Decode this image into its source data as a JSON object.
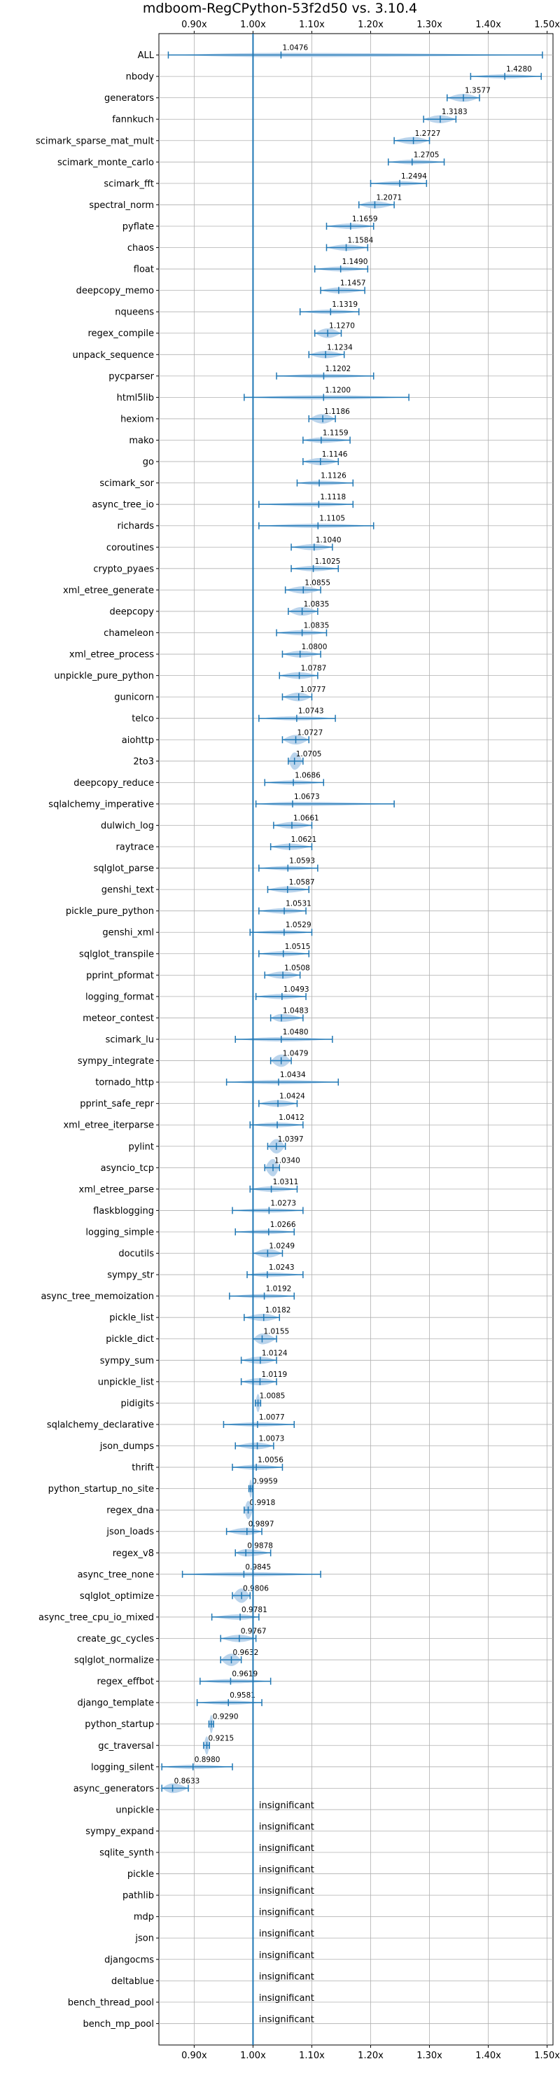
{
  "chart_data": {
    "type": "violin",
    "title": "mdboom-RegCPython-53f2d50 vs. 3.10.4",
    "xlim": [
      0.84,
      1.51
    ],
    "x_ticks": [
      0.9,
      1.0,
      1.1,
      1.2,
      1.3,
      1.4,
      1.5
    ],
    "x_tick_labels": [
      "0.90x",
      "1.00x",
      "1.10x",
      "1.20x",
      "1.30x",
      "1.40x",
      "1.50x"
    ],
    "reference_line": 1.0,
    "grid": true,
    "insignificant_text": "insignificant",
    "benchmarks": [
      {
        "name": "ALL",
        "label": "1.0476",
        "value": 1.0476,
        "min": 0.856,
        "max": 1.492
      },
      {
        "name": "nbody",
        "label": "1.4280",
        "value": 1.428,
        "min": 1.37,
        "max": 1.49
      },
      {
        "name": "generators",
        "label": "1.3577",
        "value": 1.3577,
        "min": 1.33,
        "max": 1.385
      },
      {
        "name": "fannkuch",
        "label": "1.3183",
        "value": 1.3183,
        "min": 1.29,
        "max": 1.345
      },
      {
        "name": "scimark_sparse_mat_mult",
        "label": "1.2727",
        "value": 1.2727,
        "min": 1.24,
        "max": 1.3
      },
      {
        "name": "scimark_monte_carlo",
        "label": "1.2705",
        "value": 1.2705,
        "min": 1.23,
        "max": 1.325
      },
      {
        "name": "scimark_fft",
        "label": "1.2494",
        "value": 1.2494,
        "min": 1.2,
        "max": 1.295
      },
      {
        "name": "spectral_norm",
        "label": "1.2071",
        "value": 1.2071,
        "min": 1.18,
        "max": 1.24
      },
      {
        "name": "pyflate",
        "label": "1.1659",
        "value": 1.1659,
        "min": 1.125,
        "max": 1.205
      },
      {
        "name": "chaos",
        "label": "1.1584",
        "value": 1.1584,
        "min": 1.125,
        "max": 1.195
      },
      {
        "name": "float",
        "label": "1.1490",
        "value": 1.149,
        "min": 1.105,
        "max": 1.195
      },
      {
        "name": "deepcopy_memo",
        "label": "1.1457",
        "value": 1.1457,
        "min": 1.115,
        "max": 1.19
      },
      {
        "name": "nqueens",
        "label": "1.1319",
        "value": 1.1319,
        "min": 1.08,
        "max": 1.18
      },
      {
        "name": "regex_compile",
        "label": "1.1270",
        "value": 1.127,
        "min": 1.105,
        "max": 1.15
      },
      {
        "name": "unpack_sequence",
        "label": "1.1234",
        "value": 1.1234,
        "min": 1.095,
        "max": 1.155
      },
      {
        "name": "pycparser",
        "label": "1.1202",
        "value": 1.1202,
        "min": 1.04,
        "max": 1.205
      },
      {
        "name": "html5lib",
        "label": "1.1200",
        "value": 1.12,
        "min": 0.985,
        "max": 1.265
      },
      {
        "name": "hexiom",
        "label": "1.1186",
        "value": 1.1186,
        "min": 1.095,
        "max": 1.14
      },
      {
        "name": "mako",
        "label": "1.1159",
        "value": 1.1159,
        "min": 1.085,
        "max": 1.165
      },
      {
        "name": "go",
        "label": "1.1146",
        "value": 1.1146,
        "min": 1.085,
        "max": 1.145
      },
      {
        "name": "scimark_sor",
        "label": "1.1126",
        "value": 1.1126,
        "min": 1.075,
        "max": 1.17
      },
      {
        "name": "async_tree_io",
        "label": "1.1118",
        "value": 1.1118,
        "min": 1.01,
        "max": 1.17
      },
      {
        "name": "richards",
        "label": "1.1105",
        "value": 1.1105,
        "min": 1.01,
        "max": 1.205
      },
      {
        "name": "coroutines",
        "label": "1.1040",
        "value": 1.104,
        "min": 1.065,
        "max": 1.135
      },
      {
        "name": "crypto_pyaes",
        "label": "1.1025",
        "value": 1.1025,
        "min": 1.065,
        "max": 1.145
      },
      {
        "name": "xml_etree_generate",
        "label": "1.0855",
        "value": 1.0855,
        "min": 1.055,
        "max": 1.115
      },
      {
        "name": "deepcopy",
        "label": "1.0835",
        "value": 1.0835,
        "min": 1.06,
        "max": 1.11
      },
      {
        "name": "chameleon",
        "label": "1.0835",
        "value": 1.0835,
        "min": 1.04,
        "max": 1.125
      },
      {
        "name": "xml_etree_process",
        "label": "1.0800",
        "value": 1.08,
        "min": 1.05,
        "max": 1.115
      },
      {
        "name": "unpickle_pure_python",
        "label": "1.0787",
        "value": 1.0787,
        "min": 1.045,
        "max": 1.11
      },
      {
        "name": "gunicorn",
        "label": "1.0777",
        "value": 1.0777,
        "min": 1.05,
        "max": 1.1
      },
      {
        "name": "telco",
        "label": "1.0743",
        "value": 1.0743,
        "min": 1.01,
        "max": 1.14
      },
      {
        "name": "aiohttp",
        "label": "1.0727",
        "value": 1.0727,
        "min": 1.05,
        "max": 1.095
      },
      {
        "name": "2to3",
        "label": "1.0705",
        "value": 1.0705,
        "min": 1.06,
        "max": 1.085
      },
      {
        "name": "deepcopy_reduce",
        "label": "1.0686",
        "value": 1.0686,
        "min": 1.02,
        "max": 1.12
      },
      {
        "name": "sqlalchemy_imperative",
        "label": "1.0673",
        "value": 1.0673,
        "min": 1.005,
        "max": 1.24
      },
      {
        "name": "dulwich_log",
        "label": "1.0661",
        "value": 1.0661,
        "min": 1.035,
        "max": 1.1
      },
      {
        "name": "raytrace",
        "label": "1.0621",
        "value": 1.0621,
        "min": 1.03,
        "max": 1.1
      },
      {
        "name": "sqlglot_parse",
        "label": "1.0593",
        "value": 1.0593,
        "min": 1.01,
        "max": 1.11
      },
      {
        "name": "genshi_text",
        "label": "1.0587",
        "value": 1.0587,
        "min": 1.025,
        "max": 1.095
      },
      {
        "name": "pickle_pure_python",
        "label": "1.0531",
        "value": 1.0531,
        "min": 1.01,
        "max": 1.09
      },
      {
        "name": "genshi_xml",
        "label": "1.0529",
        "value": 1.0529,
        "min": 0.995,
        "max": 1.1
      },
      {
        "name": "sqlglot_transpile",
        "label": "1.0515",
        "value": 1.0515,
        "min": 1.01,
        "max": 1.095
      },
      {
        "name": "pprint_pformat",
        "label": "1.0508",
        "value": 1.0508,
        "min": 1.02,
        "max": 1.08
      },
      {
        "name": "logging_format",
        "label": "1.0493",
        "value": 1.0493,
        "min": 1.005,
        "max": 1.09
      },
      {
        "name": "meteor_contest",
        "label": "1.0483",
        "value": 1.0483,
        "min": 1.03,
        "max": 1.085
      },
      {
        "name": "scimark_lu",
        "label": "1.0480",
        "value": 1.048,
        "min": 0.97,
        "max": 1.135
      },
      {
        "name": "sympy_integrate",
        "label": "1.0479",
        "value": 1.0479,
        "min": 1.03,
        "max": 1.065
      },
      {
        "name": "tornado_http",
        "label": "1.0434",
        "value": 1.0434,
        "min": 0.955,
        "max": 1.145
      },
      {
        "name": "pprint_safe_repr",
        "label": "1.0424",
        "value": 1.0424,
        "min": 1.01,
        "max": 1.075
      },
      {
        "name": "xml_etree_iterparse",
        "label": "1.0412",
        "value": 1.0412,
        "min": 0.995,
        "max": 1.085
      },
      {
        "name": "pylint",
        "label": "1.0397",
        "value": 1.0397,
        "min": 1.025,
        "max": 1.055
      },
      {
        "name": "asyncio_tcp",
        "label": "1.0340",
        "value": 1.034,
        "min": 1.02,
        "max": 1.045
      },
      {
        "name": "xml_etree_parse",
        "label": "1.0311",
        "value": 1.0311,
        "min": 0.995,
        "max": 1.075
      },
      {
        "name": "flaskblogging",
        "label": "1.0273",
        "value": 1.0273,
        "min": 0.965,
        "max": 1.085
      },
      {
        "name": "logging_simple",
        "label": "1.0266",
        "value": 1.0266,
        "min": 0.97,
        "max": 1.07
      },
      {
        "name": "docutils",
        "label": "1.0249",
        "value": 1.0249,
        "min": 1.0,
        "max": 1.05
      },
      {
        "name": "sympy_str",
        "label": "1.0243",
        "value": 1.0243,
        "min": 0.99,
        "max": 1.085
      },
      {
        "name": "async_tree_memoization",
        "label": "1.0192",
        "value": 1.0192,
        "min": 0.96,
        "max": 1.07
      },
      {
        "name": "pickle_list",
        "label": "1.0182",
        "value": 1.0182,
        "min": 0.985,
        "max": 1.045
      },
      {
        "name": "pickle_dict",
        "label": "1.0155",
        "value": 1.0155,
        "min": 1.0,
        "max": 1.04
      },
      {
        "name": "sympy_sum",
        "label": "1.0124",
        "value": 1.0124,
        "min": 0.98,
        "max": 1.04
      },
      {
        "name": "unpickle_list",
        "label": "1.0119",
        "value": 1.0119,
        "min": 0.98,
        "max": 1.04
      },
      {
        "name": "pidigits",
        "label": "1.0085",
        "value": 1.0085,
        "min": 1.004,
        "max": 1.013
      },
      {
        "name": "sqlalchemy_declarative",
        "label": "1.0077",
        "value": 1.0077,
        "min": 0.95,
        "max": 1.07
      },
      {
        "name": "json_dumps",
        "label": "1.0073",
        "value": 1.0073,
        "min": 0.97,
        "max": 1.035
      },
      {
        "name": "thrift",
        "label": "1.0056",
        "value": 1.0056,
        "min": 0.965,
        "max": 1.05
      },
      {
        "name": "python_startup_no_site",
        "label": "0.9959",
        "value": 0.9959,
        "min": 0.993,
        "max": 0.999
      },
      {
        "name": "regex_dna",
        "label": "0.9918",
        "value": 0.9918,
        "min": 0.985,
        "max": 1.0
      },
      {
        "name": "json_loads",
        "label": "0.9897",
        "value": 0.9897,
        "min": 0.955,
        "max": 1.015
      },
      {
        "name": "regex_v8",
        "label": "0.9878",
        "value": 0.9878,
        "min": 0.97,
        "max": 1.03
      },
      {
        "name": "async_tree_none",
        "label": "0.9845",
        "value": 0.9845,
        "min": 0.88,
        "max": 1.115
      },
      {
        "name": "sqlglot_optimize",
        "label": "0.9806",
        "value": 0.9806,
        "min": 0.965,
        "max": 0.995
      },
      {
        "name": "async_tree_cpu_io_mixed",
        "label": "0.9781",
        "value": 0.9781,
        "min": 0.93,
        "max": 1.01
      },
      {
        "name": "create_gc_cycles",
        "label": "0.9767",
        "value": 0.9767,
        "min": 0.945,
        "max": 1.005
      },
      {
        "name": "sqlglot_normalize",
        "label": "0.9632",
        "value": 0.9632,
        "min": 0.945,
        "max": 0.98
      },
      {
        "name": "regex_effbot",
        "label": "0.9619",
        "value": 0.9619,
        "min": 0.91,
        "max": 1.03
      },
      {
        "name": "django_template",
        "label": "0.9581",
        "value": 0.9581,
        "min": 0.905,
        "max": 1.015
      },
      {
        "name": "python_startup",
        "label": "0.9290",
        "value": 0.929,
        "min": 0.925,
        "max": 0.933
      },
      {
        "name": "gc_traversal",
        "label": "0.9215",
        "value": 0.9215,
        "min": 0.916,
        "max": 0.926
      },
      {
        "name": "logging_silent",
        "label": "0.8980",
        "value": 0.898,
        "min": 0.845,
        "max": 0.965
      },
      {
        "name": "async_generators",
        "label": "0.8633",
        "value": 0.8633,
        "min": 0.845,
        "max": 0.89
      },
      {
        "name": "unpickle",
        "label": "insignificant",
        "value": null
      },
      {
        "name": "sympy_expand",
        "label": "insignificant",
        "value": null
      },
      {
        "name": "sqlite_synth",
        "label": "insignificant",
        "value": null
      },
      {
        "name": "pickle",
        "label": "insignificant",
        "value": null
      },
      {
        "name": "pathlib",
        "label": "insignificant",
        "value": null
      },
      {
        "name": "mdp",
        "label": "insignificant",
        "value": null
      },
      {
        "name": "json",
        "label": "insignificant",
        "value": null
      },
      {
        "name": "djangocms",
        "label": "insignificant",
        "value": null
      },
      {
        "name": "deltablue",
        "label": "insignificant",
        "value": null
      },
      {
        "name": "bench_thread_pool",
        "label": "insignificant",
        "value": null
      },
      {
        "name": "bench_mp_pool",
        "label": "insignificant",
        "value": null
      }
    ],
    "colors": {
      "violin_fill": "#aecde9",
      "range_line": "#1f77b4",
      "reference_line": "#1f77b4",
      "grid": "#b0b0b0"
    }
  }
}
